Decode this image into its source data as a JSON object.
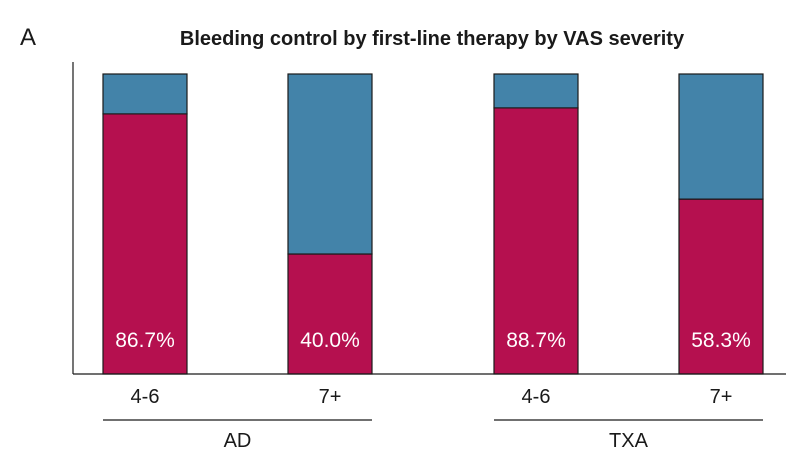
{
  "panel_label": "A",
  "chart_data": {
    "type": "bar",
    "stacked": true,
    "normalized": true,
    "title": "Bleeding control by first-line therapy by VAS severity",
    "xlabel": "",
    "ylabel": "",
    "ylim": [
      0,
      100
    ],
    "grid": false,
    "legend": "none",
    "groups": [
      "AD",
      "TXA"
    ],
    "categories": [
      "4-6",
      "7+",
      "4-6",
      "7+"
    ],
    "category_groups": [
      "AD",
      "AD",
      "TXA",
      "TXA"
    ],
    "data_labels": [
      "86.7%",
      "40.0%",
      "88.7%",
      "58.3%"
    ],
    "series": [
      {
        "values": [
          86.7,
          40.0,
          88.7,
          58.3
        ],
        "color": "#b5104f"
      },
      {
        "values": [
          13.3,
          60.0,
          11.3,
          41.7
        ],
        "color": "#4383a9"
      }
    ]
  }
}
